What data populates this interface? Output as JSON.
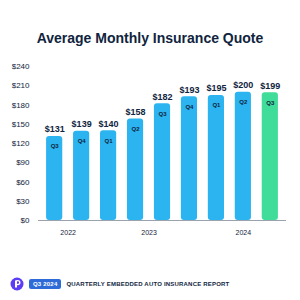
{
  "chart_data": {
    "type": "bar",
    "title": "Average Monthly Insurance Quote",
    "categories": [
      "Q3",
      "Q4",
      "Q1",
      "Q2",
      "Q3",
      "Q4",
      "Q1",
      "Q2",
      "Q3"
    ],
    "values": [
      131,
      139,
      140,
      158,
      182,
      193,
      195,
      200,
      199
    ],
    "value_labels": [
      "$131",
      "$139",
      "$140",
      "$158",
      "$182",
      "$193",
      "$195",
      "$200",
      "$199"
    ],
    "colors": [
      "#2cb4f0",
      "#2cb4f0",
      "#2cb4f0",
      "#2cb4f0",
      "#2cb4f0",
      "#2cb4f0",
      "#2cb4f0",
      "#2cb4f0",
      "#3fdc9a"
    ],
    "groups": [
      {
        "label": "2022",
        "count": 2
      },
      {
        "label": "2023",
        "count": 4
      },
      {
        "label": "2024",
        "count": 3
      }
    ],
    "ylim": [
      0,
      240
    ],
    "yticks": [
      {
        "value": 0,
        "label": "$0"
      },
      {
        "value": 30,
        "label": "$30"
      },
      {
        "value": 60,
        "label": "$60"
      },
      {
        "value": 90,
        "label": "$90"
      },
      {
        "value": 120,
        "label": "$120"
      },
      {
        "value": 150,
        "label": "$150"
      },
      {
        "value": 180,
        "label": "$180"
      },
      {
        "value": 210,
        "label": "$210"
      },
      {
        "value": 240,
        "label": "$240"
      }
    ],
    "grid": false,
    "data_labels": true,
    "footer": {
      "badge": "Q3 2024",
      "text": "QUARTERLY EMBEDDED AUTO INSURANCE REPORT"
    }
  }
}
